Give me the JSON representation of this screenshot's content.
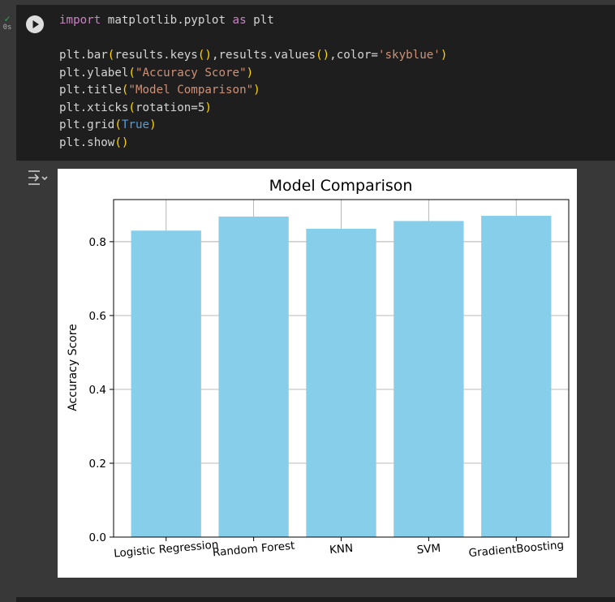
{
  "cell": {
    "status_time": "0s",
    "code_lines": [
      [
        {
          "t": "import",
          "c": "kw"
        },
        {
          "t": " matplotlib.pyplot "
        },
        {
          "t": "as",
          "c": "kw"
        },
        {
          "t": " plt"
        }
      ],
      [],
      [
        {
          "t": "plt.bar"
        },
        {
          "t": "(",
          "c": "paren"
        },
        {
          "t": "results.keys"
        },
        {
          "t": "()",
          "c": "paren"
        },
        {
          "t": ",results.values"
        },
        {
          "t": "()",
          "c": "paren"
        },
        {
          "t": ",color="
        },
        {
          "t": "'skyblue'",
          "c": "str"
        },
        {
          "t": ")",
          "c": "paren"
        }
      ],
      [
        {
          "t": "plt.ylabel"
        },
        {
          "t": "(",
          "c": "paren"
        },
        {
          "t": "\"Accuracy Score\"",
          "c": "str"
        },
        {
          "t": ")",
          "c": "paren"
        }
      ],
      [
        {
          "t": "plt.title"
        },
        {
          "t": "(",
          "c": "paren"
        },
        {
          "t": "\"Model Comparison\"",
          "c": "str"
        },
        {
          "t": ")",
          "c": "paren"
        }
      ],
      [
        {
          "t": "plt.xticks"
        },
        {
          "t": "(",
          "c": "paren"
        },
        {
          "t": "rotation=5"
        },
        {
          "t": ")",
          "c": "paren"
        }
      ],
      [
        {
          "t": "plt.grid"
        },
        {
          "t": "(",
          "c": "paren"
        },
        {
          "t": "True",
          "c": "const"
        },
        {
          "t": ")",
          "c": "paren"
        }
      ],
      [
        {
          "t": "plt.show"
        },
        {
          "t": "()",
          "c": "paren"
        }
      ]
    ]
  },
  "colors": {
    "bar": "#87ceeb",
    "grid": "#b0b0b0",
    "axis": "#000000"
  },
  "chart_data": {
    "type": "bar",
    "title": "Model Comparison",
    "xlabel": "",
    "ylabel": "Accuracy Score",
    "categories": [
      "Logistic Regression",
      "Random Forest",
      "KNN",
      "SVM",
      "GradientBoosting"
    ],
    "values": [
      0.83,
      0.868,
      0.835,
      0.856,
      0.87
    ],
    "ylim": [
      0,
      0.914
    ],
    "yticks": [
      0.0,
      0.2,
      0.4,
      0.6,
      0.8
    ],
    "ytick_labels": [
      "0.0",
      "0.2",
      "0.4",
      "0.6",
      "0.8"
    ],
    "xtick_rotation": 5,
    "grid": true
  }
}
